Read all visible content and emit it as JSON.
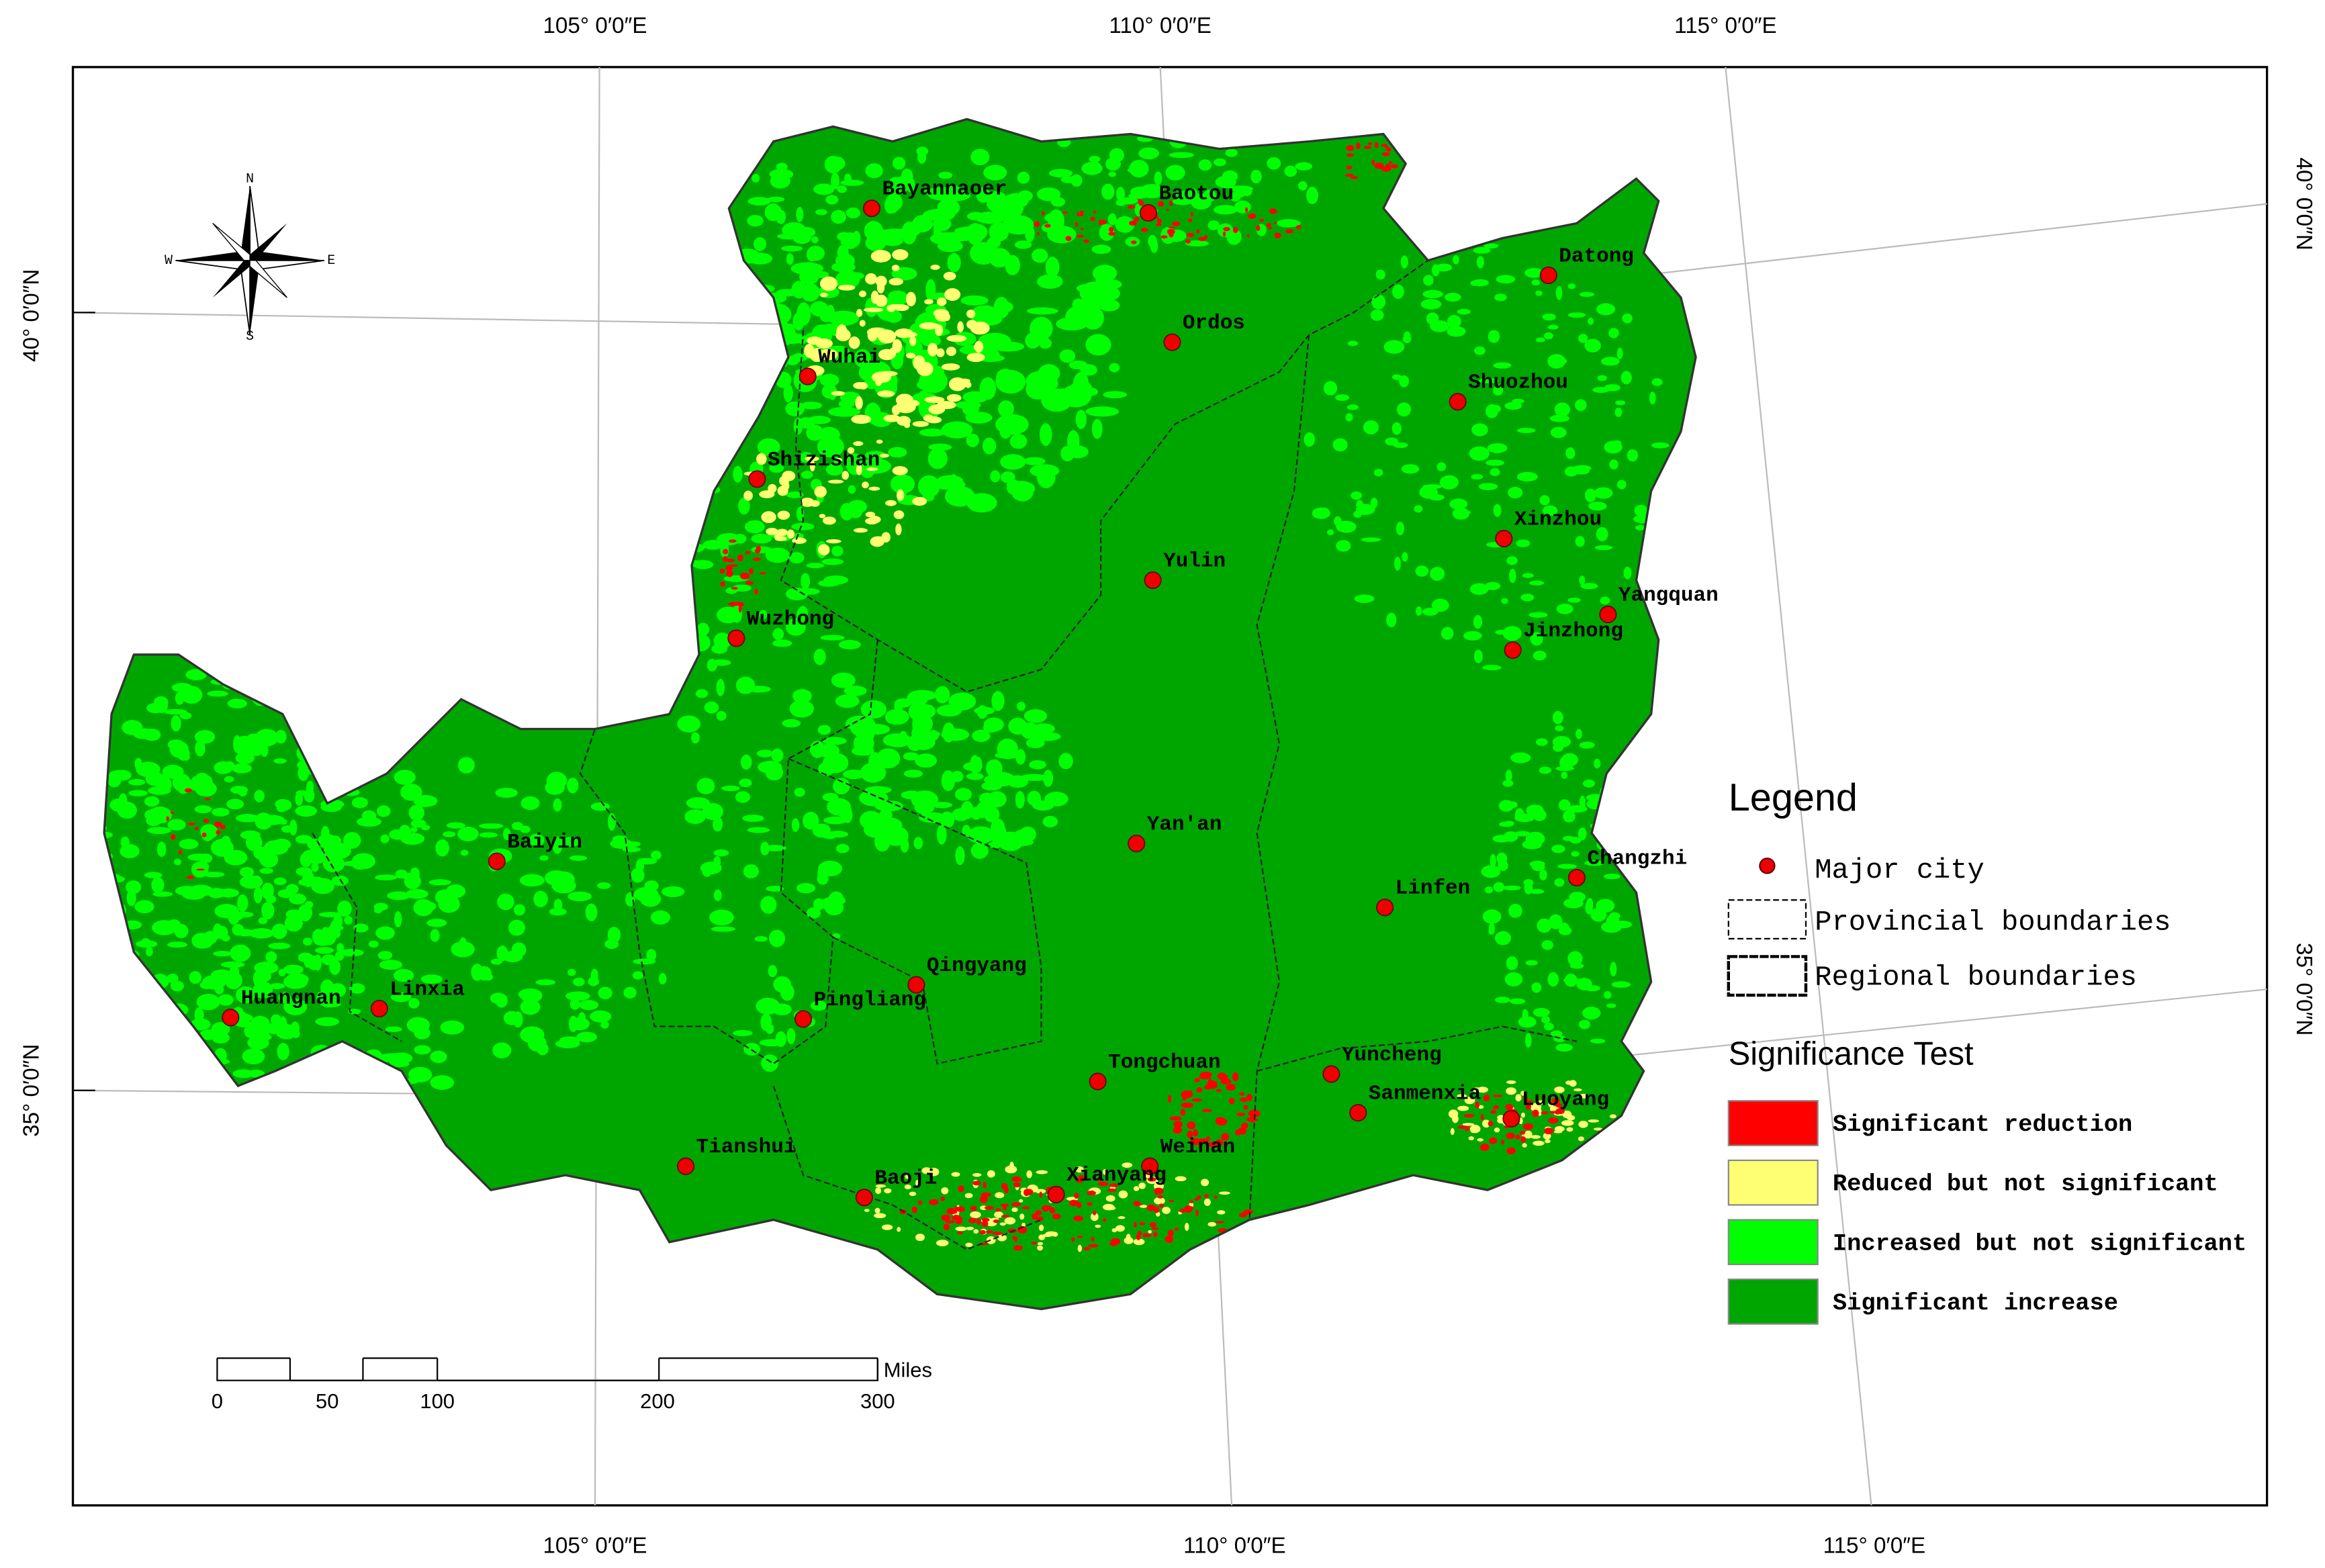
{
  "map": {
    "graticule": {
      "top": [
        "105° 0′0″E",
        "110° 0′0″E",
        "115° 0′0″E"
      ],
      "bottom": [
        "105° 0′0″E",
        "110° 0′0″E",
        "115° 0′0″E"
      ],
      "left": [
        "40° 0′0″N",
        "35° 0′0″N"
      ],
      "right": [
        "40° 0′0″N",
        "35° 0′0″N"
      ]
    },
    "compass": {
      "north": "N",
      "south": "S",
      "east": "E",
      "west": "W"
    },
    "cities": [
      "Bayannaoer",
      "Baotou",
      "Datong",
      "Ordos",
      "Wuhai",
      "Shuozhou",
      "Shizishan",
      "Xinzhou",
      "Yulin",
      "Yangquan",
      "Wuzhong",
      "Jinzhong",
      "Yan'an",
      "Changzhi",
      "Baiyin",
      "Linfen",
      "Qingyang",
      "Linxia",
      "Huangnan",
      "Pingliang",
      "Tongchuan",
      "Yuncheng",
      "Sanmenxia",
      "Luoyang",
      "Weinan",
      "Tianshui",
      "Baoji",
      "Xianyang"
    ],
    "legend": {
      "title": "Legend",
      "major_city": "Major city",
      "provincial": "Provincial boundaries",
      "regional": "Regional boundaries",
      "significance_title": "Significance Test",
      "classes": [
        {
          "name": "Significant reduction",
          "color": "#ff0000"
        },
        {
          "name": "Reduced but not significant",
          "color": "#ffff73"
        },
        {
          "name": "Increased but not significant",
          "color": "#00ff00"
        },
        {
          "name": "Significant increase",
          "color": "#00a600"
        }
      ]
    },
    "scale_bar": {
      "unit": "Miles",
      "ticks": [
        0,
        50,
        100,
        200,
        300
      ]
    }
  }
}
